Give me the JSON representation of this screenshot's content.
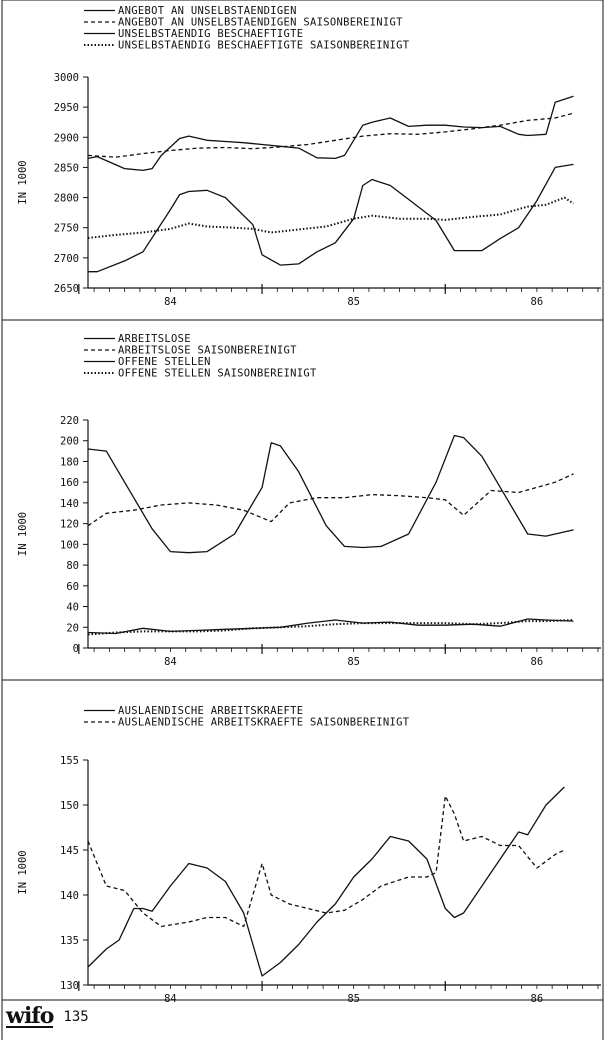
{
  "footer": {
    "logo": "wifo",
    "page_number": "135"
  },
  "chart_data": [
    {
      "type": "line",
      "ylabel": "IN 1000",
      "ylim": [
        2650,
        3000
      ],
      "yticks": [
        2650,
        2700,
        2750,
        2800,
        2850,
        2900,
        2950,
        3000
      ],
      "xlim": [
        83.55,
        86.35
      ],
      "xticks_labels": [
        {
          "x": 84,
          "label": "84"
        },
        {
          "x": 85,
          "label": "85"
        },
        {
          "x": 86,
          "label": "86"
        }
      ],
      "legend_placement": "top-left",
      "series": [
        {
          "name": "ANGEBOT AN UNSELBSTAENDIGEN",
          "style": "solid",
          "x": [
            83.55,
            83.6,
            83.75,
            83.85,
            83.9,
            83.95,
            84.05,
            84.1,
            84.2,
            84.3,
            84.4,
            84.5,
            84.6,
            84.7,
            84.8,
            84.9,
            84.95,
            85.05,
            85.1,
            85.2,
            85.3,
            85.4,
            85.5,
            85.6,
            85.7,
            85.8,
            85.9,
            85.95,
            86.05,
            86.1,
            86.2
          ],
          "y": [
            2865,
            2868,
            2848,
            2845,
            2848,
            2870,
            2898,
            2902,
            2895,
            2893,
            2891,
            2888,
            2885,
            2882,
            2866,
            2865,
            2870,
            2920,
            2925,
            2932,
            2918,
            2920,
            2920,
            2917,
            2916,
            2918,
            2905,
            2903,
            2905,
            2958,
            2968
          ]
        },
        {
          "name": "ANGEBOT AN UNSELBSTAENDIGEN SAISONBEREINIGT",
          "style": "dashed",
          "x": [
            83.55,
            83.7,
            83.85,
            84.0,
            84.15,
            84.3,
            84.45,
            84.6,
            84.75,
            84.9,
            85.05,
            85.2,
            85.35,
            85.5,
            85.65,
            85.8,
            85.95,
            86.1,
            86.2
          ],
          "y": [
            2870,
            2867,
            2873,
            2878,
            2882,
            2883,
            2881,
            2884,
            2888,
            2895,
            2902,
            2906,
            2905,
            2909,
            2914,
            2920,
            2928,
            2932,
            2940
          ]
        },
        {
          "name": "UNSELBSTAENDIG BESCHAEFTIGTE",
          "style": "solid",
          "x": [
            83.55,
            83.6,
            83.75,
            83.85,
            84.0,
            84.05,
            84.1,
            84.2,
            84.3,
            84.45,
            84.5,
            84.6,
            84.7,
            84.8,
            84.9,
            85.0,
            85.05,
            85.1,
            85.2,
            85.3,
            85.45,
            85.55,
            85.6,
            85.7,
            85.8,
            85.9,
            86.0,
            86.1,
            86.2
          ],
          "y": [
            2677,
            2677,
            2695,
            2710,
            2780,
            2805,
            2810,
            2812,
            2800,
            2755,
            2705,
            2688,
            2690,
            2710,
            2725,
            2765,
            2820,
            2830,
            2820,
            2797,
            2762,
            2712,
            2712,
            2712,
            2732,
            2750,
            2795,
            2850,
            2855
          ]
        },
        {
          "name": "UNSELBSTAENDIG BESCHAEFTIGTE SAISONBEREINIGT",
          "style": "dash-dot",
          "x": [
            83.55,
            83.7,
            83.85,
            84.0,
            84.1,
            84.2,
            84.35,
            84.45,
            84.55,
            84.7,
            84.85,
            85.0,
            85.1,
            85.25,
            85.4,
            85.5,
            85.65,
            85.8,
            85.95,
            86.05,
            86.15,
            86.2
          ],
          "y": [
            2733,
            2738,
            2742,
            2748,
            2757,
            2752,
            2750,
            2748,
            2742,
            2747,
            2752,
            2765,
            2770,
            2765,
            2765,
            2763,
            2768,
            2772,
            2785,
            2788,
            2800,
            2790
          ]
        }
      ]
    },
    {
      "type": "line",
      "ylabel": "IN 1000",
      "ylim": [
        0,
        220
      ],
      "yticks": [
        0,
        20,
        40,
        60,
        80,
        100,
        120,
        140,
        160,
        180,
        200,
        220
      ],
      "xlim": [
        83.55,
        86.35
      ],
      "xticks_labels": [
        {
          "x": 84,
          "label": "84"
        },
        {
          "x": 85,
          "label": "85"
        },
        {
          "x": 86,
          "label": "86"
        }
      ],
      "legend_placement": "top-left",
      "series": [
        {
          "name": "ARBEITSLOSE",
          "style": "solid",
          "x": [
            83.55,
            83.65,
            83.75,
            83.9,
            84.0,
            84.1,
            84.2,
            84.35,
            84.5,
            84.55,
            84.6,
            84.7,
            84.85,
            84.95,
            85.05,
            85.15,
            85.3,
            85.45,
            85.55,
            85.6,
            85.7,
            85.85,
            85.95,
            86.05,
            86.15,
            86.2
          ],
          "y": [
            192,
            190,
            160,
            115,
            93,
            92,
            93,
            110,
            155,
            198,
            195,
            170,
            118,
            98,
            97,
            98,
            110,
            160,
            205,
            203,
            185,
            140,
            110,
            108,
            112,
            114
          ]
        },
        {
          "name": "ARBEITSLOSE SAISONBEREINIGT",
          "style": "dashed",
          "x": [
            83.55,
            83.65,
            83.8,
            83.95,
            84.1,
            84.25,
            84.4,
            84.55,
            84.65,
            84.8,
            84.95,
            85.1,
            85.25,
            85.4,
            85.5,
            85.6,
            85.75,
            85.9,
            86.0,
            86.1,
            86.2
          ],
          "y": [
            118,
            130,
            133,
            138,
            140,
            138,
            133,
            122,
            140,
            145,
            145,
            148,
            147,
            145,
            143,
            128,
            152,
            150,
            155,
            160,
            168
          ]
        },
        {
          "name": "OFFENE STELLEN",
          "style": "solid",
          "x": [
            83.55,
            83.7,
            83.85,
            84.0,
            84.15,
            84.3,
            84.45,
            84.6,
            84.75,
            84.9,
            85.05,
            85.2,
            85.35,
            85.5,
            85.65,
            85.8,
            85.95,
            86.05,
            86.2
          ],
          "y": [
            15,
            14,
            19,
            16,
            17,
            18,
            19,
            20,
            24,
            27,
            24,
            25,
            22,
            22,
            23,
            21,
            28,
            27,
            26
          ]
        },
        {
          "name": "OFFENE STELLEN SAISONBEREINIGT",
          "style": "dash-dot",
          "x": [
            83.55,
            83.7,
            83.85,
            84.0,
            84.15,
            84.3,
            84.45,
            84.6,
            84.75,
            84.9,
            85.05,
            85.2,
            85.35,
            85.5,
            85.65,
            85.8,
            85.95,
            86.05,
            86.2
          ],
          "y": [
            13,
            15,
            16,
            16,
            16,
            17,
            19,
            20,
            21,
            23,
            24,
            24,
            24,
            24,
            23,
            24,
            26,
            26,
            27
          ]
        }
      ]
    },
    {
      "type": "line",
      "ylabel": "IN 1000",
      "ylim": [
        130,
        155
      ],
      "yticks": [
        130,
        135,
        140,
        145,
        150,
        155
      ],
      "xlim": [
        83.55,
        86.35
      ],
      "xticks_labels": [
        {
          "x": 84,
          "label": "84"
        },
        {
          "x": 85,
          "label": "85"
        },
        {
          "x": 86,
          "label": "86"
        }
      ],
      "legend_placement": "top-left",
      "series": [
        {
          "name": "AUSLAENDISCHE ARBEITSKRAEFTE",
          "style": "solid",
          "x": [
            83.55,
            83.65,
            83.72,
            83.8,
            83.85,
            83.9,
            84.0,
            84.1,
            84.2,
            84.3,
            84.4,
            84.5,
            84.6,
            84.7,
            84.8,
            84.9,
            85.0,
            85.1,
            85.2,
            85.3,
            85.4,
            85.5,
            85.55,
            85.6,
            85.7,
            85.8,
            85.9,
            85.95,
            86.05,
            86.15
          ],
          "y": [
            132,
            134,
            135,
            138.5,
            138.5,
            138.2,
            141,
            143.5,
            143,
            141.5,
            138,
            131,
            132.5,
            134.5,
            137,
            139,
            142,
            144,
            146.5,
            146,
            144,
            138.5,
            137.5,
            138,
            141,
            144,
            147,
            146.7,
            150,
            152
          ]
        },
        {
          "name": "AUSLAENDISCHE ARBEITSKRAEFTE SAISONBEREINIGT",
          "style": "dashed",
          "x": [
            83.55,
            83.65,
            83.75,
            83.85,
            83.95,
            84.1,
            84.2,
            84.3,
            84.4,
            84.5,
            84.55,
            84.65,
            84.75,
            84.85,
            84.95,
            85.05,
            85.15,
            85.3,
            85.4,
            85.45,
            85.5,
            85.55,
            85.6,
            85.7,
            85.8,
            85.9,
            86.0,
            86.1,
            86.15
          ],
          "y": [
            146,
            141,
            140.5,
            138,
            136.5,
            137,
            137.5,
            137.5,
            136.5,
            143.5,
            140,
            139,
            138.5,
            138,
            138.3,
            139.5,
            141,
            142,
            142,
            142.5,
            151,
            149,
            146,
            146.5,
            145.5,
            145.5,
            143,
            144.5,
            145
          ]
        }
      ]
    }
  ]
}
